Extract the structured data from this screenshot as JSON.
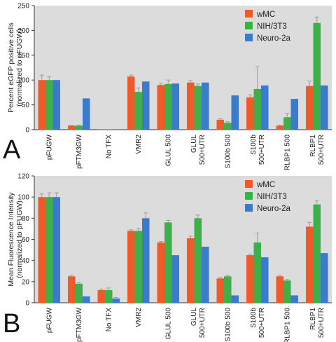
{
  "colors": {
    "wMC": "#EE5A2A",
    "NIH3T3": "#3EB04A",
    "Neuro2a": "#3A7BCB",
    "plot_bg": "#DCDCDC",
    "axis": "#333333",
    "error_bar": "#9A9A9A"
  },
  "panels": [
    {
      "letter": "A"
    },
    {
      "letter": "B"
    }
  ],
  "chart_data": [
    {
      "type": "bar",
      "ylabel": "Percent eGFP positive cells\n(normalized to pFUGW)",
      "ylim": [
        0,
        250
      ],
      "yticks": [
        0,
        50,
        100,
        150,
        200,
        250
      ],
      "grid": false,
      "legend_position": "top-right",
      "categories": [
        "pFUGW",
        "pFTM3GW",
        "No TFX",
        "VMR2",
        "GLUL 500",
        "GLUL\n500+UTR",
        "S100b 500",
        "S100b\n500+UTR",
        "RLBP1 500",
        "RLBP1\n500+UTR"
      ],
      "series": [
        {
          "name": "wMC",
          "values": [
            100,
            8,
            1,
            107,
            90,
            95,
            20,
            65,
            8,
            88
          ],
          "errors": [
            10,
            1,
            0,
            3,
            4,
            4,
            2,
            5,
            1,
            10
          ]
        },
        {
          "name": "NIH/3T3",
          "values": [
            100,
            8,
            1,
            76,
            92,
            88,
            14,
            82,
            25,
            215
          ],
          "errors": [
            7,
            1,
            0,
            8,
            8,
            4,
            2,
            45,
            8,
            12
          ]
        },
        {
          "name": "Neuro-2a",
          "values": [
            100,
            63,
            1,
            97,
            93,
            95,
            69,
            89,
            62,
            89
          ],
          "errors": [
            0,
            0,
            0,
            0,
            0,
            0,
            0,
            0,
            0,
            0
          ]
        }
      ]
    },
    {
      "type": "bar",
      "ylabel": "Mean Fluorescence Intensity\n(normalized to pFUGW)",
      "ylim": [
        0,
        120
      ],
      "yticks": [
        0,
        20,
        40,
        60,
        80,
        100,
        120
      ],
      "grid": false,
      "legend_position": "top-right",
      "categories": [
        "pFUGW",
        "pFTM3GW",
        "No TFX",
        "VMR2",
        "GLUL 500",
        "GLUL\n500+UTR",
        "S100b 500",
        "S100b\n500+UTR",
        "RLBP1 500",
        "RLBP1\n500+UTR"
      ],
      "series": [
        {
          "name": "wMC",
          "values": [
            100,
            25,
            12,
            68,
            57,
            61,
            23,
            45,
            25,
            72
          ],
          "errors": [
            3,
            1,
            1,
            1,
            1,
            2,
            1,
            1,
            1,
            4
          ]
        },
        {
          "name": "NIH/3T3",
          "values": [
            100,
            18,
            12,
            68,
            76,
            80,
            25,
            57,
            21,
            93
          ],
          "errors": [
            4,
            1,
            2,
            2,
            2,
            3,
            1,
            9,
            1,
            4
          ]
        },
        {
          "name": "Neuro-2a",
          "values": [
            100,
            6,
            4,
            80,
            45,
            53,
            7,
            43,
            7,
            47
          ],
          "errors": [
            4,
            0,
            1,
            5,
            0,
            0,
            0,
            0,
            0,
            0
          ]
        }
      ]
    }
  ]
}
